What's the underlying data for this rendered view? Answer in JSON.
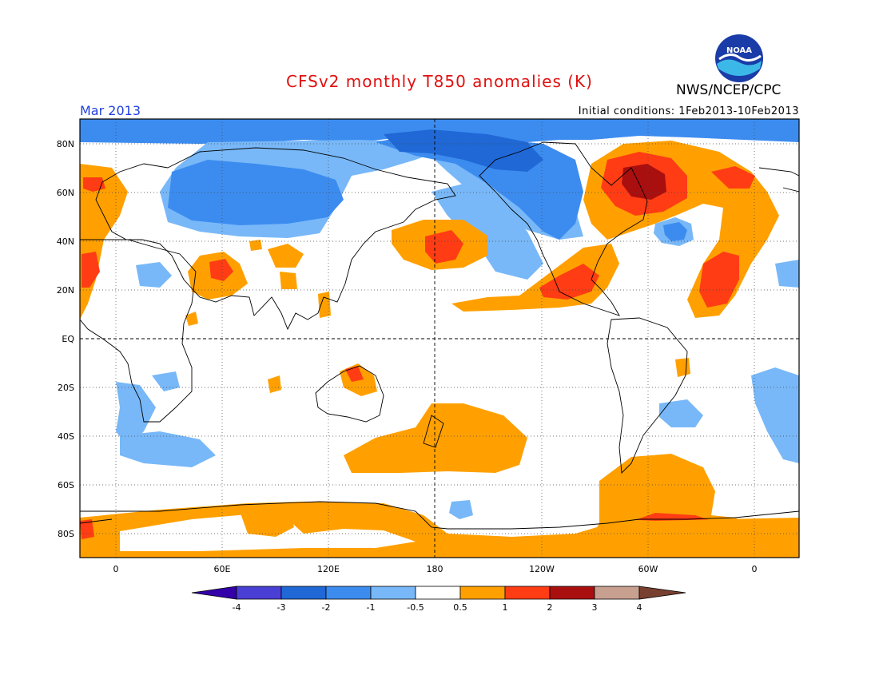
{
  "header": {
    "title": "CFSv2 monthly T850 anomalies (K)",
    "month": "Mar 2013",
    "initial_conditions": "Initial conditions: 1Feb2013-10Feb2013",
    "agency": "NWS/NCEP/CPC",
    "logo_text": "NOAA"
  },
  "map": {
    "lat_labels": [
      "80N",
      "60N",
      "40N",
      "20N",
      "EQ",
      "20S",
      "40S",
      "60S",
      "80S"
    ],
    "lon_labels": [
      "0",
      "60E",
      "120E",
      "180",
      "120W",
      "60W",
      "0"
    ]
  },
  "legend": {
    "labels": [
      "-4",
      "-3",
      "-2",
      "-1",
      "-0.5",
      "0.5",
      "1",
      "2",
      "3",
      "4"
    ],
    "colors": [
      "#3300aa",
      "#4a3fd4",
      "#1f68d6",
      "#3c8cf0",
      "#78b8f8",
      "#ffffff",
      "#ffa000",
      "#ff3c14",
      "#aa0f0f",
      "#c8a090",
      "#784030"
    ]
  }
}
